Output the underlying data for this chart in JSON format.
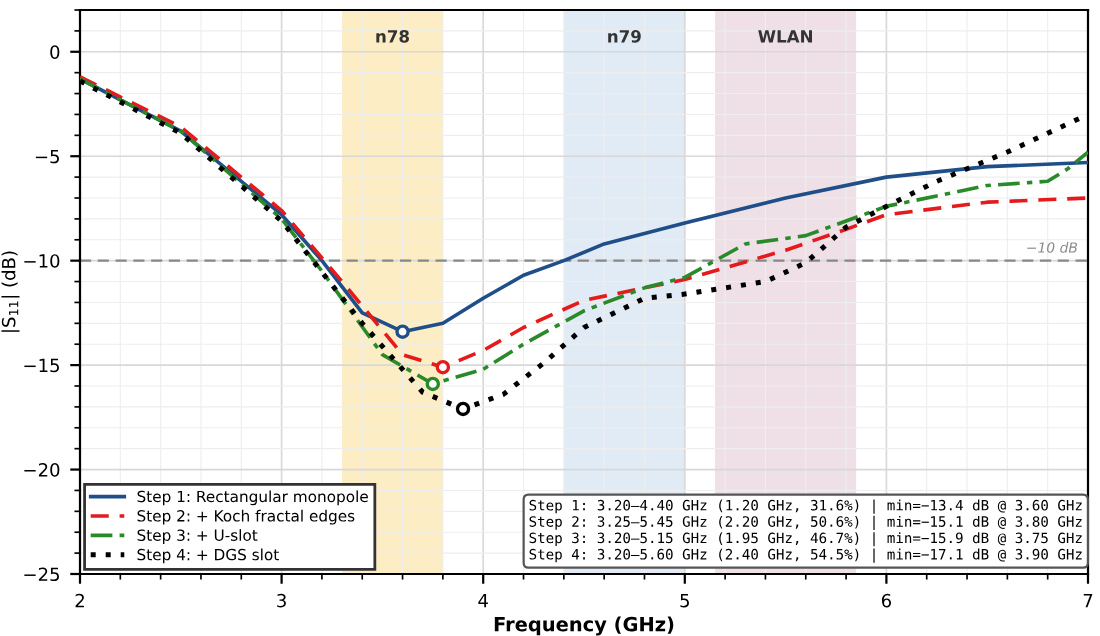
{
  "chart_data": {
    "type": "line",
    "xlabel": "Frequency (GHz)",
    "ylabel": "|S$_{11}$| (dB)",
    "xlim": [
      2,
      7
    ],
    "ylim": [
      -25,
      2
    ],
    "xticks": [
      2,
      3,
      4,
      5,
      6,
      7
    ],
    "yticks": [
      -25,
      -20,
      -15,
      -10,
      -5,
      0
    ],
    "grid": true,
    "legend": "bottom left",
    "series": [
      {
        "name": "Step 1: Rectangular monopole",
        "color": "#1f4e89",
        "line_style": "solid",
        "x": [
          2,
          2.5,
          3.0,
          3.2,
          3.4,
          3.6,
          3.8,
          4.0,
          4.2,
          4.4,
          4.6,
          5.0,
          5.5,
          6.0,
          6.5,
          7.0
        ],
        "values": [
          -1.3,
          -3.8,
          -7.8,
          -10,
          -12.5,
          -13.4,
          -13.0,
          -11.8,
          -10.7,
          -10.0,
          -9.2,
          -8.2,
          -7.0,
          -6.0,
          -5.5,
          -5.3
        ]
      },
      {
        "name": "Step 2: + Koch fractal edges",
        "color": "#e41a1c",
        "line_style": "dashed",
        "x": [
          2,
          2.5,
          3.0,
          3.3,
          3.6,
          3.8,
          4.0,
          4.2,
          4.5,
          5.0,
          5.5,
          5.8,
          6.0,
          6.5,
          7.0
        ],
        "values": [
          -1.2,
          -3.6,
          -7.6,
          -11,
          -14.5,
          -15.1,
          -14.3,
          -13.2,
          -11.9,
          -10.9,
          -9.5,
          -8.5,
          -7.8,
          -7.2,
          -7.0
        ]
      },
      {
        "name": "Step 3: + U-slot",
        "color": "#2a8a2a",
        "line_style": "dashdot",
        "x": [
          2,
          2.5,
          3.0,
          3.2,
          3.5,
          3.75,
          4.0,
          4.2,
          4.5,
          4.8,
          5.0,
          5.15,
          5.3,
          5.6,
          6.0,
          6.5,
          6.8,
          6.9,
          7.0
        ],
        "values": [
          -1.3,
          -3.8,
          -8,
          -10.5,
          -14.5,
          -15.9,
          -15.2,
          -14,
          -12.4,
          -11.3,
          -10.8,
          -10,
          -9.2,
          -8.8,
          -7.4,
          -6.4,
          -6.2,
          -5.6,
          -4.8
        ]
      },
      {
        "name": "Step 4: + DGS slot",
        "color": "#000000",
        "line_style": "dotted",
        "x": [
          2,
          2.5,
          3.0,
          3.4,
          3.7,
          3.9,
          4.1,
          4.3,
          4.5,
          4.8,
          5.0,
          5.4,
          5.6,
          5.8,
          6.0,
          6.25,
          6.6,
          7.0
        ],
        "values": [
          -1.4,
          -3.9,
          -8.1,
          -13,
          -16.3,
          -17.1,
          -16.4,
          -14.9,
          -13.2,
          -11.8,
          -11.6,
          -11.0,
          -10.1,
          -8.4,
          -7.4,
          -6.2,
          -4.8,
          -3.0
        ]
      },
      {
        "type": "scatter",
        "marker": "circle",
        "color": "#1f4e89",
        "x": [
          3.6
        ],
        "values": [
          -13.4
        ]
      },
      {
        "type": "scatter",
        "marker": "circle",
        "color": "#e41a1c",
        "x": [
          3.8
        ],
        "values": [
          -15.1
        ]
      },
      {
        "type": "scatter",
        "marker": "circle",
        "color": "#2a8a2a",
        "x": [
          3.75
        ],
        "values": [
          -15.9
        ]
      },
      {
        "type": "scatter",
        "marker": "circle",
        "color": "#000000",
        "x": [
          3.9
        ],
        "values": [
          -17.1
        ]
      }
    ],
    "ref_lines": [
      {
        "axis": "y",
        "value": -10,
        "label": "−10 dB",
        "color": "#888888",
        "line_style": "dashed"
      }
    ],
    "bands": [
      {
        "axis": "x",
        "from": 3.3,
        "to": 3.8,
        "label": "n78",
        "color": "#fbe9b7"
      },
      {
        "axis": "x",
        "from": 4.4,
        "to": 5.0,
        "label": "n79",
        "color": "#d8e6f4"
      },
      {
        "axis": "x",
        "from": 5.15,
        "to": 5.85,
        "label": "WLAN",
        "color": "#ead8e0"
      }
    ],
    "annotations": [
      "Step 1: 3.20–4.40 GHz (1.20 GHz, 31.6%) | min=−13.4 dB @ 3.60 GHz",
      "Step 2: 3.25–5.45 GHz (2.20 GHz, 50.6%) | min=−15.1 dB @ 3.80 GHz",
      "Step 3: 3.20–5.15 GHz (1.95 GHz, 46.7%) | min=−15.9 dB @ 3.75 GHz",
      "Step 4: 3.20–5.60 GHz (2.40 GHz, 54.5%) | min=−17.1 dB @ 3.90 GHz"
    ]
  }
}
